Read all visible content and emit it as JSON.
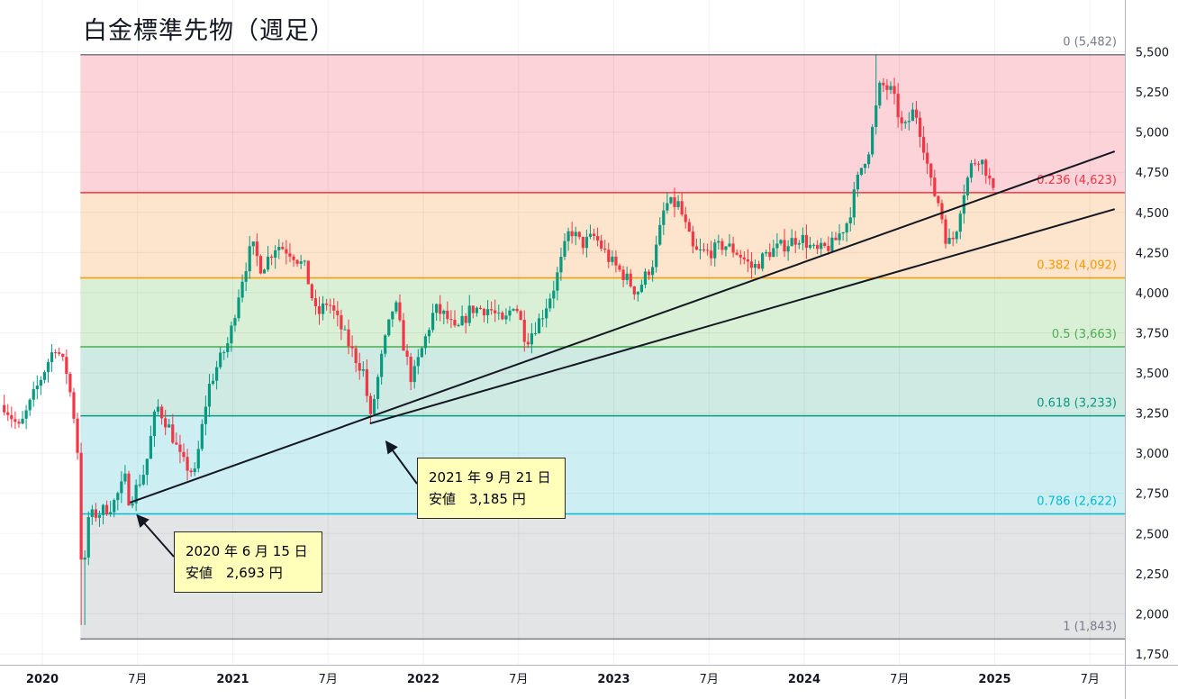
{
  "title": "白金標準先物（週足）",
  "chart_data": {
    "type": "candlestick",
    "timeframe": "weekly",
    "y_axis": {
      "min": 1750,
      "max": 5500,
      "step": 250,
      "tick_labels": [
        "5,500",
        "5,250",
        "5,000",
        "4,750",
        "4,500",
        "4,250",
        "4,000",
        "3,750",
        "3,500",
        "3,250",
        "3,000",
        "2,750",
        "2,500",
        "2,250",
        "2,000",
        "1,750"
      ]
    },
    "x_axis": {
      "ticks": [
        {
          "label": "2020",
          "date": 2020.0,
          "bold": true
        },
        {
          "label": "7月",
          "date": 2020.5,
          "bold": false
        },
        {
          "label": "2021",
          "date": 2021.0,
          "bold": true
        },
        {
          "label": "7月",
          "date": 2021.5,
          "bold": false
        },
        {
          "label": "2022",
          "date": 2022.0,
          "bold": true
        },
        {
          "label": "7月",
          "date": 2022.5,
          "bold": false
        },
        {
          "label": "2023",
          "date": 2023.0,
          "bold": true
        },
        {
          "label": "7月",
          "date": 2023.5,
          "bold": false
        },
        {
          "label": "2024",
          "date": 2024.0,
          "bold": true
        },
        {
          "label": "7月",
          "date": 2024.5,
          "bold": false
        },
        {
          "label": "2025",
          "date": 2025.0,
          "bold": true
        },
        {
          "label": "7月",
          "date": 2025.5,
          "bold": false
        }
      ]
    },
    "fibonacci": {
      "high": 5482,
      "low": 1843,
      "levels": [
        {
          "ratio": "0",
          "price": 5482,
          "label": "0 (5,482)",
          "color": "#787b86",
          "zone": "#fbd3d8"
        },
        {
          "ratio": "0.236",
          "price": 4623,
          "label": "0.236 (4,623)",
          "color": "#f23645",
          "zone": "#fde4cc"
        },
        {
          "ratio": "0.382",
          "price": 4092,
          "label": "0.382 (4,092)",
          "color": "#ff9800",
          "zone": "#d9efd6"
        },
        {
          "ratio": "0.5",
          "price": 3663,
          "label": "0.5 (3,663)",
          "color": "#4caf50",
          "zone": "#cfeae3"
        },
        {
          "ratio": "0.618",
          "price": 3233,
          "label": "0.618 (3,233)",
          "color": "#089981",
          "zone": "#cdeff3"
        },
        {
          "ratio": "0.786",
          "price": 2622,
          "label": "0.786 (2,622)",
          "color": "#00bcd4",
          "zone": "#e3e4e6"
        },
        {
          "ratio": "1",
          "price": 1843,
          "label": "1 (1,843)",
          "color": "#787b86",
          "zone": null
        }
      ]
    },
    "fib_start_date": 2020.2,
    "trendlines": [
      {
        "from": {
          "date": 2020.46,
          "price": 2693
        },
        "to": {
          "date": 2025.63,
          "price": 4880
        }
      },
      {
        "from": {
          "date": 2021.72,
          "price": 3185
        },
        "to": {
          "date": 2025.63,
          "price": 4520
        }
      }
    ],
    "series_anchors": [
      [
        2019.8,
        3300
      ],
      [
        2019.88,
        3150
      ],
      [
        2019.95,
        3350
      ],
      [
        2020.04,
        3600
      ],
      [
        2020.07,
        3670
      ],
      [
        2020.13,
        3500
      ],
      [
        2020.17,
        3200
      ],
      [
        2020.19,
        2950
      ],
      [
        2020.21,
        2100
      ],
      [
        2020.24,
        2600
      ],
      [
        2020.3,
        2630
      ],
      [
        2020.37,
        2680
      ],
      [
        2020.44,
        2850
      ],
      [
        2020.46,
        2700
      ],
      [
        2020.54,
        2900
      ],
      [
        2020.6,
        3300
      ],
      [
        2020.67,
        3150
      ],
      [
        2020.73,
        2950
      ],
      [
        2020.8,
        2870
      ],
      [
        2020.87,
        3400
      ],
      [
        2020.92,
        3550
      ],
      [
        2020.98,
        3700
      ],
      [
        2021.04,
        4050
      ],
      [
        2021.1,
        4300
      ],
      [
        2021.15,
        4150
      ],
      [
        2021.23,
        4300
      ],
      [
        2021.31,
        4250
      ],
      [
        2021.38,
        4150
      ],
      [
        2021.44,
        3850
      ],
      [
        2021.5,
        3950
      ],
      [
        2021.56,
        3800
      ],
      [
        2021.64,
        3600
      ],
      [
        2021.69,
        3500
      ],
      [
        2021.72,
        3200
      ],
      [
        2021.79,
        3650
      ],
      [
        2021.85,
        3950
      ],
      [
        2021.9,
        3650
      ],
      [
        2021.94,
        3450
      ],
      [
        2021.98,
        3600
      ],
      [
        2022.06,
        3900
      ],
      [
        2022.12,
        3850
      ],
      [
        2022.17,
        3750
      ],
      [
        2022.25,
        3900
      ],
      [
        2022.35,
        3900
      ],
      [
        2022.42,
        3800
      ],
      [
        2022.48,
        3950
      ],
      [
        2022.54,
        3700
      ],
      [
        2022.62,
        3850
      ],
      [
        2022.69,
        4050
      ],
      [
        2022.77,
        4400
      ],
      [
        2022.83,
        4300
      ],
      [
        2022.9,
        4350
      ],
      [
        2022.98,
        4200
      ],
      [
        2023.06,
        4100
      ],
      [
        2023.12,
        4000
      ],
      [
        2023.21,
        4200
      ],
      [
        2023.27,
        4550
      ],
      [
        2023.34,
        4550
      ],
      [
        2023.42,
        4250
      ],
      [
        2023.5,
        4250
      ],
      [
        2023.58,
        4300
      ],
      [
        2023.65,
        4250
      ],
      [
        2023.73,
        4150
      ],
      [
        2023.81,
        4250
      ],
      [
        2023.9,
        4300
      ],
      [
        2023.98,
        4350
      ],
      [
        2024.06,
        4250
      ],
      [
        2024.15,
        4300
      ],
      [
        2024.23,
        4450
      ],
      [
        2024.29,
        4750
      ],
      [
        2024.34,
        4900
      ],
      [
        2024.4,
        5300
      ],
      [
        2024.46,
        5250
      ],
      [
        2024.52,
        5000
      ],
      [
        2024.58,
        5150
      ],
      [
        2024.63,
        4900
      ],
      [
        2024.67,
        4650
      ],
      [
        2024.71,
        4550
      ],
      [
        2024.75,
        4300
      ],
      [
        2024.79,
        4350
      ],
      [
        2024.83,
        4600
      ],
      [
        2024.88,
        4800
      ],
      [
        2024.92,
        4850
      ],
      [
        2024.96,
        4750
      ],
      [
        2025.0,
        4580
      ]
    ],
    "highlight_points": [
      {
        "date": 2020.46,
        "price": 2693
      },
      {
        "date": 2021.72,
        "price": 3185
      }
    ]
  },
  "annotations": [
    {
      "line1": "2020 年 6 月 15 日",
      "line2": "安値　2,693 円"
    },
    {
      "line1": "2021 年 9 月 21 日",
      "line2": "安値　3,185 円"
    }
  ]
}
